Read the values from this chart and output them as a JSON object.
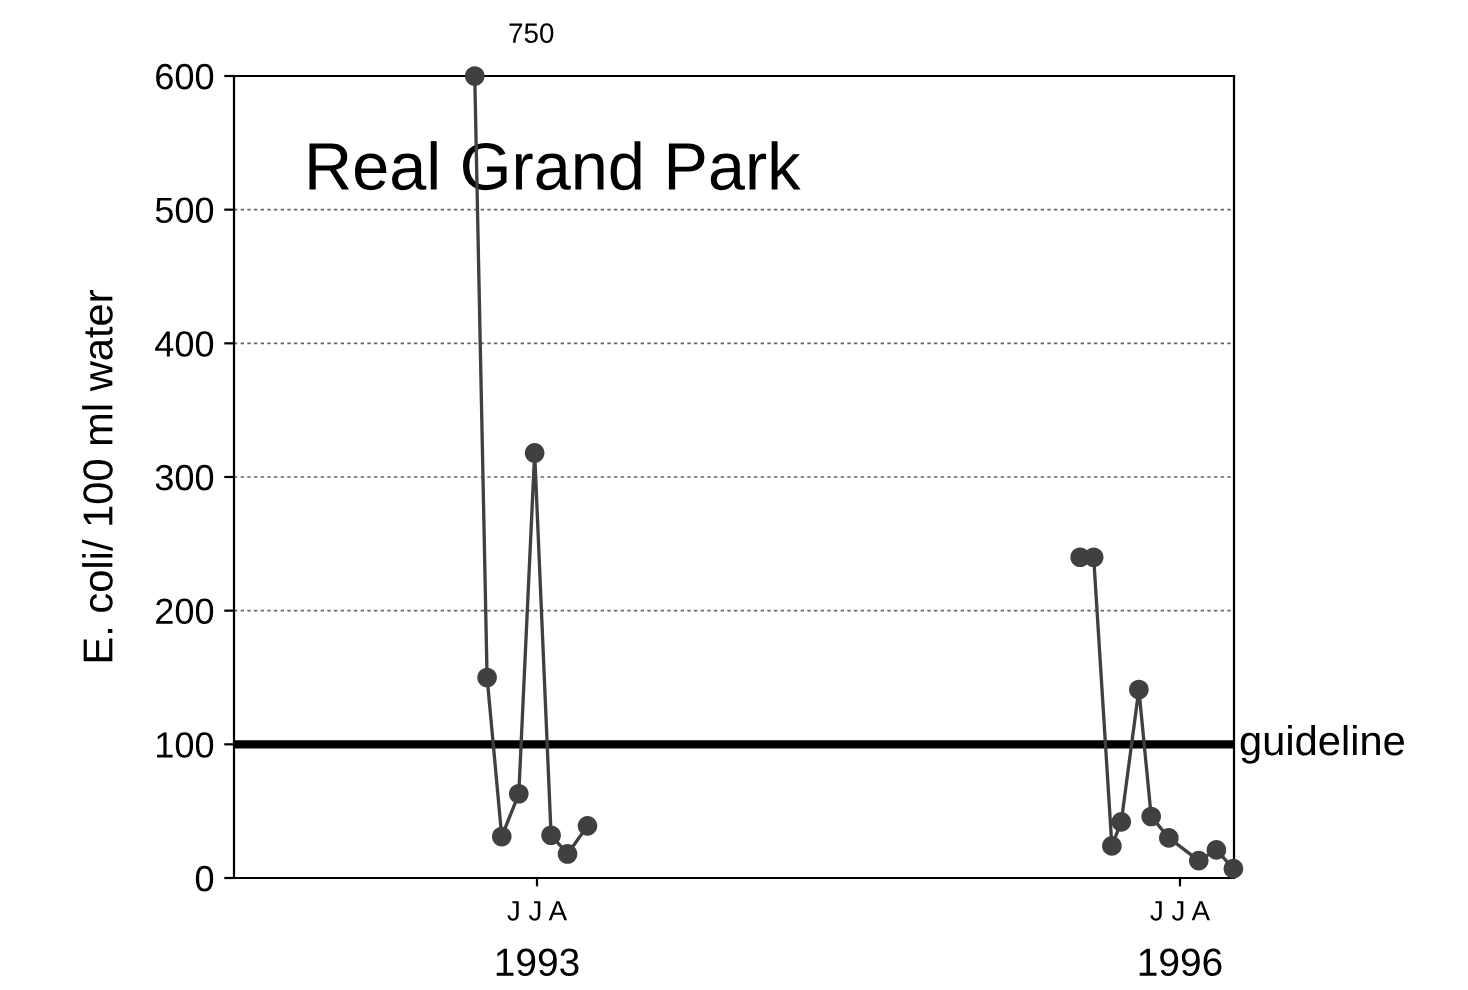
{
  "chart_data": {
    "type": "line",
    "title": "Real Grand Park",
    "ylabel": "E. coli/ 100 ml water",
    "xlim": [
      "1991-08-04",
      "1996-04-02"
    ],
    "xticks": [
      "1993",
      "1996"
    ],
    "ylim": [
      0,
      600
    ],
    "yticks": [
      0,
      100,
      200,
      300,
      400,
      500,
      600
    ],
    "series": [
      {
        "color": "#404040",
        "x": [
          "1992-09-17",
          "1992-10-08",
          "1992-11-02",
          "1992-12-01",
          "1992-12-28",
          "1993-01-25",
          "1993-02-22",
          "1993-03-28",
          "1994-06-01",
          "1995-07-15",
          "1995-08-07",
          "1995-09-07",
          "1995-09-23",
          "1995-10-23",
          "1995-11-13",
          "1995-12-13",
          "1996-02-02",
          "1996-03-03",
          "1996-04-01"
        ],
        "values": [
          600,
          150,
          31,
          63,
          318,
          32,
          18,
          39,
          null,
          240,
          240,
          24,
          42,
          141,
          46,
          30,
          13,
          21,
          7
        ]
      }
    ],
    "annotations": [
      {
        "text": "750",
        "x": "1992-09-17",
        "y": 600
      },
      "J J A",
      "J J A"
    ],
    "ref_lines": [
      {
        "axis": "y",
        "value": 100,
        "label": "guideline",
        "color": "#000000"
      }
    ],
    "grid": "y",
    "marker": "circle",
    "line_style": "solid",
    "legend": false
  }
}
